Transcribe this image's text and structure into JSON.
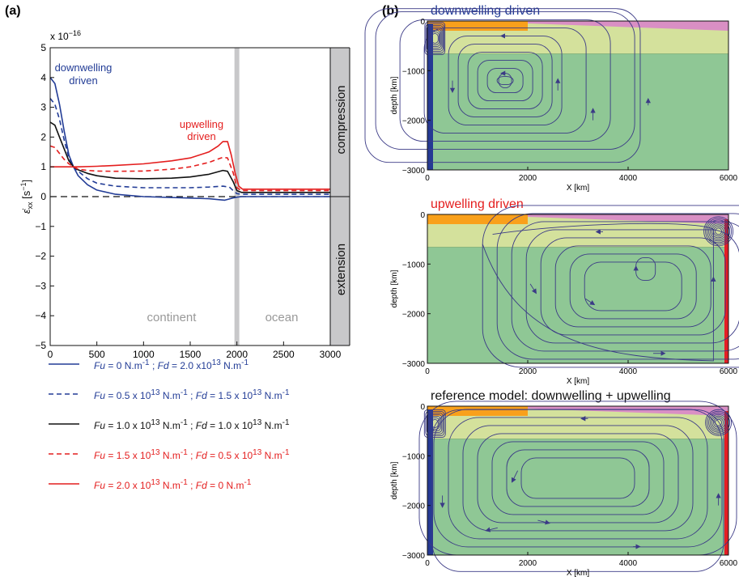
{
  "panel_labels": {
    "a": "(a)",
    "b": "(b)"
  },
  "colors": {
    "blue": "#223c96",
    "red": "#e41e1e",
    "black": "#111111",
    "grey_bar": "#c8c8ca",
    "mantle": "#8fc795",
    "lith": "#d4e19c",
    "orange": "#f9a01b",
    "pink": "#d98fc4",
    "stream": "#3b3a86",
    "edge_blue": "#253a94",
    "edge_red": "#e41e25"
  },
  "left_chart": {
    "exponent": "x 10",
    "exponent_power": "−16",
    "y_axis_label": "ε̇",
    "y_axis_sub": "xx",
    "y_axis_unit": "[s",
    "y_axis_unit_power": "−1",
    "y_axis_unit_end": "]",
    "side_labels": {
      "compression": "compression",
      "extension": "extension"
    },
    "region_labels": {
      "continent": "continent",
      "ocean": "ocean"
    },
    "annotations": {
      "down1": "downwelling",
      "down2": "driven",
      "up1": "upwelling",
      "up2": "driven"
    }
  },
  "chart_data": [
    {
      "type": "line",
      "title": "",
      "xlabel": "",
      "ylabel": "ε̇xx [s−1]",
      "xlim": [
        0,
        3000
      ],
      "ylim": [
        -5,
        5
      ],
      "xticks": [
        0,
        500,
        1000,
        1500,
        2000,
        2500,
        3000
      ],
      "yticks": [
        -5,
        -4,
        -3,
        -2,
        -1,
        0,
        1,
        2,
        3,
        4,
        5
      ],
      "y_scale_factor": "1e-16",
      "reference_line": {
        "y": 0,
        "style": "dashed"
      },
      "boundary": {
        "x": 2000
      },
      "series": [
        {
          "name": "Fu = 0 N.m⁻¹ ; Fd = 2.0 x10¹³ N.m⁻¹",
          "color": "#223c96",
          "dash": "solid",
          "x": [
            0,
            50,
            100,
            150,
            200,
            250,
            300,
            400,
            500,
            700,
            1000,
            1500,
            1700,
            1800,
            1870,
            1920,
            1950,
            2000,
            2050,
            2100,
            2500,
            3000
          ],
          "y": [
            4.0,
            3.8,
            3.1,
            2.2,
            1.4,
            1.0,
            0.7,
            0.4,
            0.22,
            0.08,
            0.0,
            -0.05,
            -0.07,
            -0.1,
            -0.12,
            -0.08,
            -0.05,
            -0.02,
            0.0,
            0.0,
            0.0,
            0.0
          ]
        },
        {
          "name": "Fu = 0.5 x 10¹³ N.m⁻¹ ; Fd = 1.5 x 10¹³ N.m⁻¹",
          "color": "#223c96",
          "dash": "dashed",
          "x": [
            0,
            50,
            100,
            150,
            200,
            250,
            300,
            400,
            500,
            700,
            1000,
            1500,
            1700,
            1850,
            1920,
            1960,
            2000,
            2050,
            2100,
            2500,
            3000
          ],
          "y": [
            3.3,
            3.1,
            2.6,
            1.9,
            1.3,
            1.0,
            0.85,
            0.6,
            0.45,
            0.35,
            0.3,
            0.3,
            0.32,
            0.35,
            0.32,
            0.2,
            0.1,
            0.08,
            0.08,
            0.08,
            0.08
          ]
        },
        {
          "name": "Fu = 1.0 x 10¹³ N.m⁻¹ ; Fd = 1.0 x 10¹³ N.m⁻¹",
          "color": "#111111",
          "dash": "solid",
          "x": [
            0,
            50,
            100,
            150,
            200,
            250,
            300,
            400,
            500,
            700,
            1000,
            1300,
            1500,
            1700,
            1850,
            1900,
            1960,
            2000,
            2050,
            2100,
            2500,
            3000
          ],
          "y": [
            2.5,
            2.4,
            2.0,
            1.6,
            1.2,
            1.0,
            0.9,
            0.78,
            0.7,
            0.62,
            0.6,
            0.62,
            0.66,
            0.75,
            0.88,
            0.85,
            0.5,
            0.2,
            0.14,
            0.14,
            0.14,
            0.14
          ]
        },
        {
          "name": "Fu = 1.5 x 10¹³ N.m⁻¹ ; Fd = 0.5 x 10¹³ N.m⁻¹",
          "color": "#e41e1e",
          "dash": "dashed",
          "x": [
            0,
            50,
            100,
            150,
            200,
            250,
            300,
            400,
            500,
            700,
            1000,
            1300,
            1500,
            1700,
            1850,
            1900,
            1960,
            2000,
            2050,
            2100,
            2500,
            3000
          ],
          "y": [
            1.7,
            1.65,
            1.45,
            1.25,
            1.1,
            1.0,
            0.92,
            0.88,
            0.86,
            0.85,
            0.86,
            0.92,
            1.0,
            1.15,
            1.32,
            1.3,
            0.8,
            0.3,
            0.2,
            0.2,
            0.2,
            0.2
          ]
        },
        {
          "name": "Fu = 2.0 x 10¹³ N.m⁻¹ ; Fd = 0 N.m⁻¹",
          "color": "#e41e1e",
          "dash": "solid",
          "x": [
            0,
            100,
            200,
            300,
            500,
            700,
            1000,
            1300,
            1500,
            1700,
            1800,
            1850,
            1900,
            1940,
            1980,
            2020,
            2060,
            2100,
            2500,
            3000
          ],
          "y": [
            1.0,
            1.0,
            1.0,
            1.0,
            1.02,
            1.05,
            1.1,
            1.2,
            1.3,
            1.5,
            1.7,
            1.85,
            1.85,
            1.4,
            0.8,
            0.35,
            0.25,
            0.25,
            0.25,
            0.25
          ]
        }
      ]
    },
    {
      "type": "line",
      "title": "downwelling driven",
      "xlabel": "X [km]",
      "ylabel": "depth [km]",
      "xlim": [
        0,
        6000
      ],
      "ylim": [
        -3000,
        0
      ],
      "xticks": [
        0,
        2000,
        4000,
        6000
      ],
      "yticks": [
        -3000,
        -2000,
        -1000,
        0
      ]
    },
    {
      "type": "line",
      "title": "upwelling driven",
      "xlabel": "X [km]",
      "ylabel": "depth [km]",
      "xlim": [
        0,
        6000
      ],
      "ylim": [
        -3000,
        0
      ],
      "xticks": [
        0,
        2000,
        4000,
        6000
      ],
      "yticks": [
        -3000,
        -2000,
        -1000,
        0
      ]
    },
    {
      "type": "line",
      "title": "reference model: downwelling + upwelling",
      "xlabel": "X [km]",
      "ylabel": "depth [km]",
      "xlim": [
        0,
        6000
      ],
      "ylim": [
        -3000,
        0
      ],
      "xticks": [
        0,
        2000,
        4000,
        6000
      ],
      "yticks": [
        -3000,
        -2000,
        -1000,
        0
      ]
    }
  ],
  "legend": [
    {
      "fu_label": "Fu",
      "fu_value": " =  0 N.m",
      "fu_exp": "-1",
      "sep": " ; ",
      "fd_label": "Fd",
      "fd_value": " = 2.0 x10",
      "fd_exp_a": "13",
      "fd_unit": " N.m",
      "fd_exp_b": "-1",
      "fu_mid_exp": "",
      "fu_unit": ""
    },
    {
      "fu_label": "Fu",
      "fu_value": " =  0.5 x 10",
      "fu_exp": "13",
      "fu_unit": " N.m",
      "fu_unit_exp": "-1",
      "sep": " ; ",
      "fd_label": "Fd",
      "fd_value": " = 1.5 x 10",
      "fd_exp_a": "13",
      "fd_unit": " N.m",
      "fd_exp_b": "-1"
    },
    {
      "fu_label": "Fu",
      "fu_value": " =  1.0 x 10",
      "fu_exp": "13",
      "fu_unit": " N.m",
      "fu_unit_exp": "-1",
      "sep": " ; ",
      "fd_label": "Fd",
      "fd_value": " = 1.0 x 10",
      "fd_exp_a": "13",
      "fd_unit": " N.m",
      "fd_exp_b": "-1"
    },
    {
      "fu_label": "Fu",
      "fu_value": " =  1.5 x 10",
      "fu_exp": "13",
      "fu_unit": " N.m",
      "fu_unit_exp": "-1",
      "sep": " ; ",
      "fd_label": "Fd",
      "fd_value": " = 0.5 x 10",
      "fd_exp_a": "13",
      "fd_unit": " N.m",
      "fd_exp_b": "-1"
    },
    {
      "fu_label": "Fu",
      "fu_value": " =  2.0 x 10",
      "fu_exp": "13",
      "fu_unit": " N.m",
      "fu_unit_exp": "-1",
      "sep": " ; ",
      "fd_label": "Fd",
      "fd_value": " = 0 N.m",
      "fd_exp_a": "",
      "fd_unit": "",
      "fd_exp_b": "-1"
    }
  ]
}
